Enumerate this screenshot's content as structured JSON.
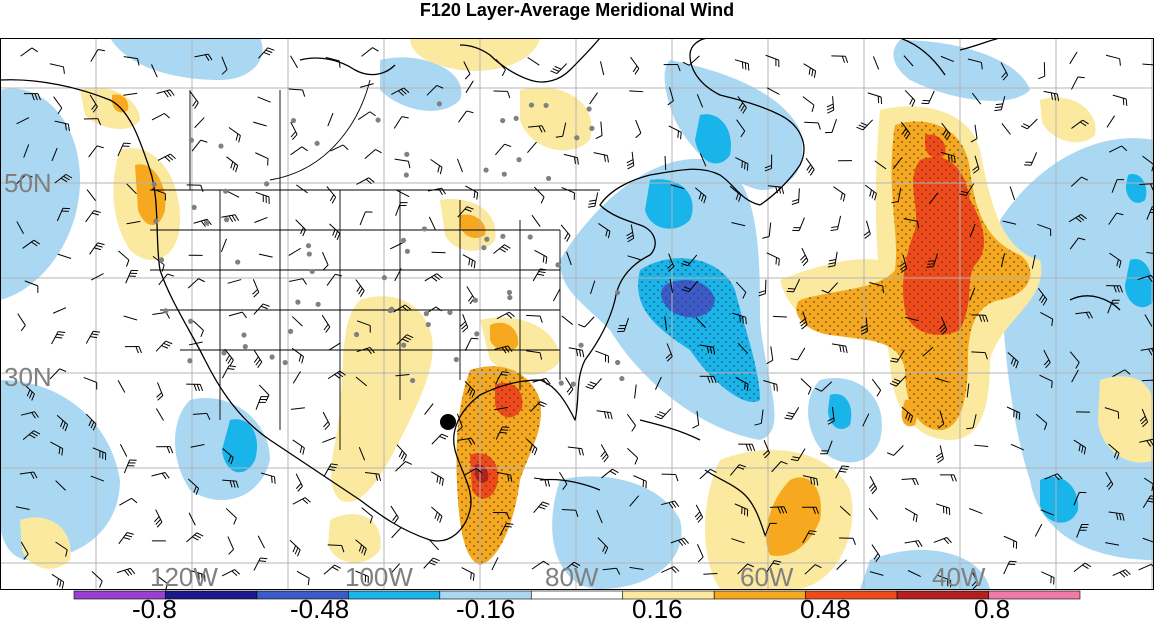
{
  "title": "F120 Layer-Average Meridional Wind",
  "axes": {
    "lat_labels": [
      "50N",
      "30N"
    ],
    "lon_labels": [
      "120W",
      "100W",
      "80W",
      "60W",
      "40W"
    ]
  },
  "colorbar": {
    "labels": [
      "-0.8",
      "-0.48",
      "-0.16",
      "0.16",
      "0.48",
      "0.8"
    ],
    "colors": [
      "#9a3fd0",
      "#1a1a8c",
      "#3c5ac8",
      "#18b4ea",
      "#aad8f3",
      "#ffffff",
      "#fbe9a0",
      "#f6a91f",
      "#f04a1a",
      "#b41f1f",
      "#f07aa8"
    ]
  },
  "colors": {
    "strong_negative": "#3c5ac8",
    "negative": "#18b4ea",
    "weak_negative": "#aad8f3",
    "weak_positive": "#fbe9a0",
    "positive": "#f6a91f",
    "strong_positive": "#f04a1a",
    "extreme_positive": "#b41f1f",
    "grid": "#b4b4b4",
    "coast": "#000000"
  },
  "icons": {
    "wind_barbs": "wind-barb-icon",
    "station_dots": "station-dot-icon",
    "location_marker": "black-dot-marker-icon"
  }
}
